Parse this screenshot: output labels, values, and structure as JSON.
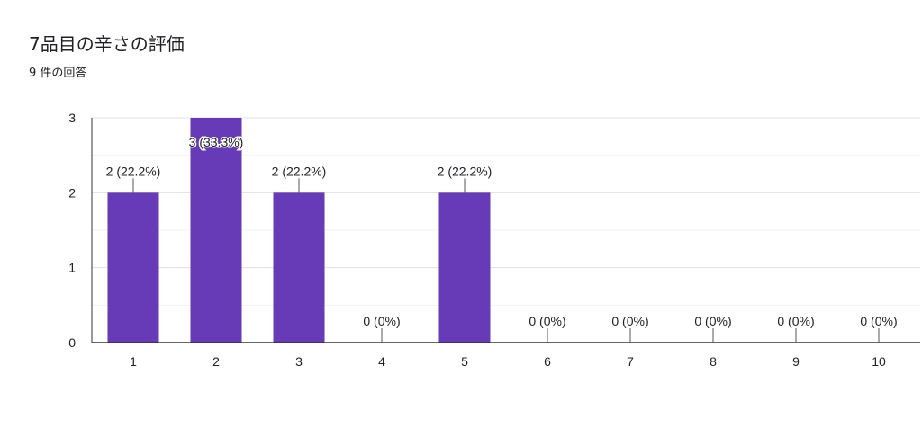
{
  "question": {
    "title": "7品目の辛さの評価",
    "response_count": "9 件の回答"
  },
  "chart_data": {
    "type": "bar",
    "categories": [
      "1",
      "2",
      "3",
      "4",
      "5",
      "6",
      "7",
      "8",
      "9",
      "10"
    ],
    "values": [
      2,
      3,
      2,
      0,
      2,
      0,
      0,
      0,
      0,
      0
    ],
    "data_labels": [
      "2 (22.2%)",
      "3 (33.3%)",
      "2 (22.2%)",
      "0 (0%)",
      "2 (22.2%)",
      "0 (0%)",
      "0 (0%)",
      "0 (0%)",
      "0 (0%)",
      "0 (0%)"
    ],
    "yticks": [
      0,
      1,
      2,
      3
    ],
    "ylim": [
      0,
      3
    ],
    "grid": true,
    "title": "7品目の辛さの評価",
    "xlabel": "",
    "ylabel": "",
    "colors": {
      "bar": "#673ab7",
      "gridline": "#e0e0e0",
      "minor_gridline": "#f3f3f3",
      "axis": "#333333",
      "text": "#202124"
    }
  }
}
